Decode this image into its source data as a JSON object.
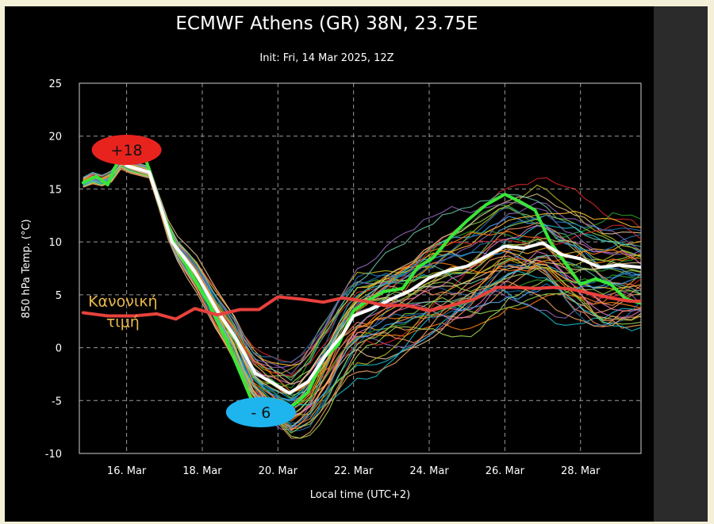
{
  "chart_data": {
    "type": "line",
    "title": "ECMWF Athens (GR) 38N, 23.75E",
    "subtitle": "Init: Fri, 14 Mar 2025, 12Z",
    "xlabel": "Local time (UTC+2)",
    "ylabel": "850 hPa Temp. (°C)",
    "xlim": [
      14.75,
      29.6
    ],
    "ylim": [
      -10,
      25
    ],
    "xticks": [
      {
        "value": 16,
        "label": "16. Mar"
      },
      {
        "value": 18,
        "label": "18. Mar"
      },
      {
        "value": 20,
        "label": "20. Mar"
      },
      {
        "value": 22,
        "label": "22. Mar"
      },
      {
        "value": 24,
        "label": "24. Mar"
      },
      {
        "value": 26,
        "label": "26. Mar"
      },
      {
        "value": 28,
        "label": "28. Mar"
      }
    ],
    "yticks": [
      -10,
      -5,
      0,
      5,
      10,
      15,
      20,
      25
    ],
    "grid": true,
    "series": [
      {
        "role": "deterministic",
        "color": "#39e639",
        "values": [
          [
            14.85,
            15.6
          ],
          [
            15.2,
            16.2
          ],
          [
            15.5,
            15.4
          ],
          [
            15.75,
            17.5
          ],
          [
            16.2,
            17.6
          ],
          [
            16.5,
            17.9
          ],
          [
            16.9,
            13.2
          ],
          [
            17.3,
            9.6
          ],
          [
            17.7,
            7.0
          ],
          [
            18.2,
            4.0
          ],
          [
            18.7,
            0.2
          ],
          [
            19.1,
            -3.2
          ],
          [
            19.45,
            -6.2
          ],
          [
            19.8,
            -5.6
          ],
          [
            20.15,
            -6.0
          ],
          [
            20.5,
            -5.2
          ],
          [
            20.8,
            -4.2
          ],
          [
            21.2,
            -1.0
          ],
          [
            21.6,
            0.3
          ],
          [
            22.0,
            3.5
          ],
          [
            22.4,
            4.5
          ],
          [
            22.8,
            5.3
          ],
          [
            23.3,
            5.6
          ],
          [
            23.7,
            7.6
          ],
          [
            24.1,
            8.5
          ],
          [
            24.6,
            10.6
          ],
          [
            25.0,
            12.0
          ],
          [
            25.5,
            13.5
          ],
          [
            26.0,
            14.5
          ],
          [
            26.4,
            13.8
          ],
          [
            26.8,
            13.0
          ],
          [
            27.2,
            10.0
          ],
          [
            27.6,
            8.0
          ],
          [
            28.0,
            6.0
          ],
          [
            28.4,
            6.5
          ],
          [
            28.8,
            6.0
          ],
          [
            29.2,
            4.6
          ],
          [
            29.6,
            4.2
          ]
        ]
      },
      {
        "role": "ensemble-mean",
        "color": "#ffffff",
        "values": [
          [
            16.0,
            17.2
          ],
          [
            16.6,
            16.6
          ],
          [
            17.2,
            10.0
          ],
          [
            17.8,
            7.2
          ],
          [
            18.4,
            3.5
          ],
          [
            18.9,
            0.8
          ],
          [
            19.4,
            -2.4
          ],
          [
            19.8,
            -3.2
          ],
          [
            20.3,
            -4.3
          ],
          [
            20.8,
            -3.2
          ],
          [
            21.3,
            -0.5
          ],
          [
            21.7,
            1.2
          ],
          [
            22.0,
            3.0
          ],
          [
            22.5,
            3.7
          ],
          [
            23.0,
            4.6
          ],
          [
            23.5,
            5.4
          ],
          [
            24.0,
            6.6
          ],
          [
            24.5,
            7.3
          ],
          [
            25.0,
            7.7
          ],
          [
            25.5,
            8.6
          ],
          [
            26.0,
            9.6
          ],
          [
            26.5,
            9.4
          ],
          [
            27.0,
            9.9
          ],
          [
            27.5,
            8.8
          ],
          [
            28.0,
            8.4
          ],
          [
            28.5,
            7.6
          ],
          [
            29.0,
            7.8
          ],
          [
            29.6,
            7.6
          ]
        ]
      },
      {
        "role": "climatology",
        "color": "#e8413c",
        "values": [
          [
            14.85,
            3.3
          ],
          [
            15.5,
            3.0
          ],
          [
            16.2,
            3.0
          ],
          [
            16.8,
            3.2
          ],
          [
            17.3,
            2.7
          ],
          [
            17.8,
            3.7
          ],
          [
            18.4,
            3.1
          ],
          [
            19.0,
            3.6
          ],
          [
            19.5,
            3.6
          ],
          [
            20.0,
            4.8
          ],
          [
            20.6,
            4.6
          ],
          [
            21.2,
            4.3
          ],
          [
            21.7,
            4.7
          ],
          [
            22.3,
            4.4
          ],
          [
            22.8,
            4.0
          ],
          [
            23.4,
            4.0
          ],
          [
            24.0,
            3.5
          ],
          [
            24.6,
            4.0
          ],
          [
            25.2,
            4.6
          ],
          [
            25.8,
            5.7
          ],
          [
            26.3,
            5.7
          ],
          [
            26.8,
            5.6
          ],
          [
            27.3,
            5.7
          ],
          [
            27.8,
            5.5
          ],
          [
            28.3,
            5.1
          ],
          [
            28.8,
            4.7
          ],
          [
            29.3,
            4.4
          ],
          [
            29.6,
            4.4
          ]
        ]
      }
    ],
    "ensemble": {
      "members": 50,
      "colors": [
        "#ff7f0e",
        "#1f77b4",
        "#2ca02c",
        "#17becf",
        "#bcbd22",
        "#d62728",
        "#9467bd",
        "#e377c2",
        "#ffbb33",
        "#8fd14f",
        "#3fa9f5",
        "#f4a261",
        "#66c2a5",
        "#fc8d62",
        "#a6d854",
        "#e5c494"
      ]
    },
    "annotations": [
      {
        "type": "bubble",
        "text": "+18",
        "x": 16.0,
        "y": 18.7,
        "color": "#e8231e"
      },
      {
        "type": "bubble",
        "text": "- 6",
        "x": 19.55,
        "y": -6.1,
        "color": "#1eb4ee"
      },
      {
        "type": "label",
        "lines": [
          "Κανονική",
          "τιμή"
        ],
        "x": 15.9,
        "y": 3.9,
        "color": "#e9b84a"
      }
    ]
  }
}
